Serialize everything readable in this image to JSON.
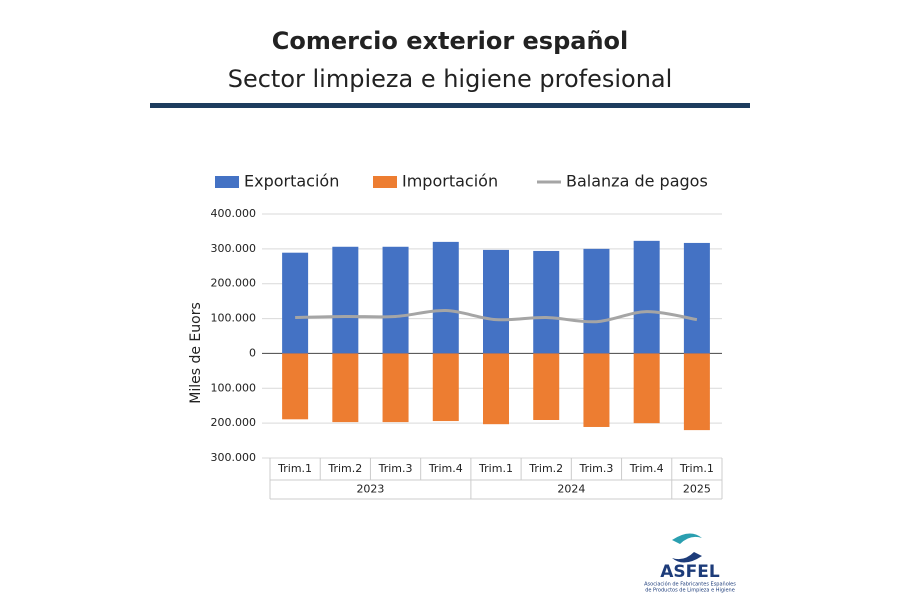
{
  "header": {
    "title": "Comercio exterior español",
    "subtitle": "Sector limpieza e higiene profesional"
  },
  "chart_data": {
    "type": "bar",
    "categories": [
      "Trim.1",
      "Trim.2",
      "Trim.3",
      "Trim.4",
      "Trim.1",
      "Trim.2",
      "Trim.3",
      "Trim.4",
      "Trim.1"
    ],
    "category_groups": [
      {
        "label": "2023",
        "size": 4
      },
      {
        "label": "2024",
        "size": 4
      },
      {
        "label": "2025",
        "size": 1
      }
    ],
    "ylabel": "Miles de Euors",
    "series": [
      {
        "name": "Exportación",
        "type": "bar",
        "color": "#4472c4",
        "values": [
          289000,
          306000,
          306000,
          320000,
          297000,
          294000,
          300000,
          323000,
          317000
        ]
      },
      {
        "name": "Importación",
        "type": "bar",
        "color": "#ed7d31",
        "values": [
          -189000,
          -197000,
          -197000,
          -194000,
          -203000,
          -191000,
          -211000,
          -200000,
          -220000
        ]
      },
      {
        "name": "Balanza de pagos",
        "type": "line",
        "color": "#a5a5a5",
        "values": [
          103000,
          106000,
          106000,
          123000,
          97000,
          103000,
          91000,
          120000,
          97000
        ]
      }
    ],
    "ylim": [
      -300000,
      400000
    ],
    "yticks": [
      {
        "value": 400000,
        "label": "400.000"
      },
      {
        "value": 300000,
        "label": "300.000"
      },
      {
        "value": 200000,
        "label": "200.000"
      },
      {
        "value": 100000,
        "label": "100.000"
      },
      0,
      {
        "value": -100000,
        "label": "100.000"
      },
      {
        "value": -200000,
        "label": "200.000"
      },
      {
        "value": -300000,
        "label": "300.000"
      }
    ],
    "grid": true,
    "legend": "top"
  },
  "logo": {
    "name": "ASFEL",
    "tagline": [
      "Asociación de Fabricantes Españoles",
      "de Productos de Limpieza e Higiene"
    ]
  }
}
